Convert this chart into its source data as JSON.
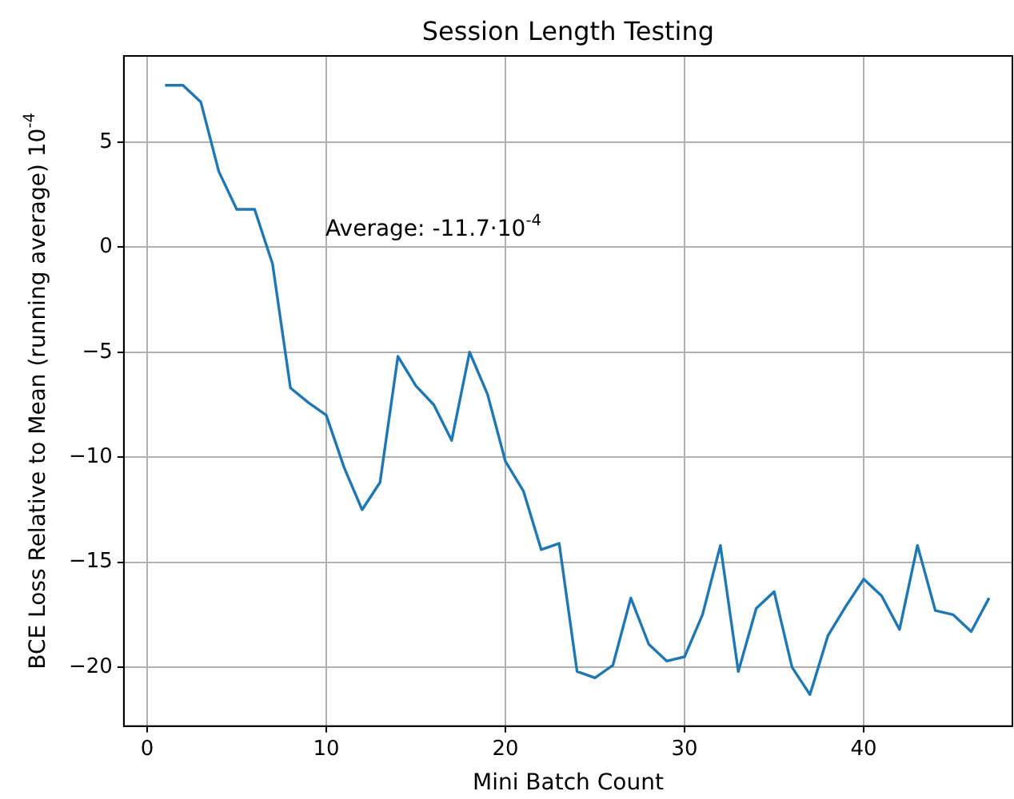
{
  "chart_data": {
    "type": "line",
    "title": "Session Length Testing",
    "xlabel": "Mini Batch Count",
    "ylabel": "BCE Loss Relative to Mean (running average) 10$^{-4}$",
    "annotations": [
      "Average: -11.7·10$^{-4}$"
    ],
    "x": [
      1,
      2,
      3,
      4,
      5,
      6,
      7,
      8,
      9,
      10,
      11,
      12,
      13,
      14,
      15,
      16,
      17,
      18,
      19,
      20,
      21,
      22,
      23,
      24,
      25,
      26,
      27,
      28,
      29,
      30,
      31,
      32,
      33,
      34,
      35,
      36,
      37,
      38,
      39,
      40,
      41,
      42,
      43,
      44,
      45,
      46,
      47
    ],
    "series": [
      {
        "color": "#1f77b4",
        "values": [
          7.7,
          7.7,
          6.9,
          3.6,
          1.8,
          1.8,
          -0.8,
          -6.7,
          -7.4,
          -8.0,
          -10.5,
          -12.5,
          -11.2,
          -5.2,
          -6.6,
          -7.5,
          -9.2,
          -5.0,
          -7.0,
          -10.2,
          -11.6,
          -14.4,
          -14.1,
          -20.2,
          -20.5,
          -19.9,
          -16.7,
          -18.9,
          -19.7,
          -19.5,
          -17.5,
          -14.2,
          -20.2,
          -17.2,
          -16.4,
          -20.0,
          -21.3,
          -18.5,
          -17.1,
          -15.8,
          -16.6,
          -18.2,
          -14.2,
          -17.3,
          -17.5,
          -18.3,
          -16.7
        ]
      }
    ],
    "xlim": [
      -1.3,
      48.3
    ],
    "ylim": [
      -22.8,
      9.1
    ],
    "xticks": [
      0,
      10,
      20,
      30,
      40
    ],
    "yticks": [
      -20,
      -15,
      -10,
      -5,
      0,
      5
    ],
    "grid": true,
    "legend": false,
    "marker": "none",
    "line_style": "solid"
  }
}
